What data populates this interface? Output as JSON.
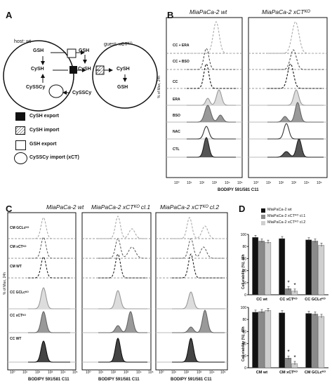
{
  "panels": {
    "A": "A",
    "B": "B",
    "C": "C",
    "D": "D"
  },
  "panelA": {
    "host": "host: wt",
    "guest": "guest: xCTᴷᴼ",
    "gsh_top": "GSH",
    "gsh_export": "GSH",
    "cysh_host": "CySH",
    "cysh_mid": "CySH",
    "cysh_guest": "CySH",
    "gsh_guest": "GSH",
    "cyssc_host": "CySSCy",
    "cyssc_out": "CySSCy",
    "legend": [
      {
        "icon": "black-square",
        "label": "CySH export"
      },
      {
        "icon": "hatched-square",
        "label": "CySH import"
      },
      {
        "icon": "white-square",
        "label": "GSH export"
      },
      {
        "icon": "white-circle",
        "label": "CySSCy import (xCT)"
      }
    ]
  },
  "panelB": {
    "col1": "MiaPaCa-2 wt",
    "col2": "MiaPaCa-2 xCTᴷᴼ",
    "ylabel": "% of Max, 24h",
    "xlabel": "BODIPY 591/581 C11",
    "rows": [
      "CC + ERA",
      "CC + BSO",
      "CC",
      "ERA",
      "BSO",
      "NAC",
      "CTL"
    ],
    "ticks": [
      "10⁰",
      "10¹",
      "10²",
      "10³",
      "10⁴",
      "10⁵"
    ]
  },
  "panelC": {
    "col1": "MiaPaCa-2 wt",
    "col2": "MiaPaCa-2 xCTᴷᴼ cl.1",
    "col3": "MiaPaCa-2 xCTᴷᴼ cl.2",
    "ylabel": "% of Max, 24h",
    "xlabel": "BODIPY 591/581 C11",
    "rows": [
      "CM GCLcᴷᴼ",
      "CM xCTᴷᴼ",
      "CM WT",
      "CC GCLcᴷᴼ",
      "CC xCTᴷᴼ",
      "CC WT"
    ],
    "ticks": [
      "10⁰",
      "10¹",
      "10²",
      "10³",
      "10⁴",
      "10⁵"
    ]
  },
  "panelD": {
    "legend": [
      "MiaPaCa-2 wt",
      "MiaPaCa-2 xCTᴷᴼ cl.1",
      "MiaPaCa-2 xCTᴷᴼ cl.2"
    ],
    "colors": [
      "#111111",
      "#8a8a8a",
      "#cfcfcf"
    ],
    "ylabel_top": "Cell viability (%), 48h",
    "ylabel_bottom": "Cell viability (%), 48h",
    "yticks": [
      "0",
      "20",
      "40",
      "60",
      "80",
      "100"
    ]
  },
  "chart_data": [
    {
      "type": "bar",
      "ylabel": "Cell viability (%), 48h",
      "ylim": [
        0,
        100
      ],
      "categories": [
        "CC wt",
        "CC xCTᴷᴼ",
        "CC GCLcᴷᴼ"
      ],
      "series": [
        {
          "name": "MiaPaCa-2 wt",
          "values": [
            95,
            93,
            91
          ]
        },
        {
          "name": "MiaPaCa-2 xCTᴷᴼ cl.1",
          "values": [
            89,
            10,
            89
          ]
        },
        {
          "name": "MiaPaCa-2 xCTᴷᴼ cl.2",
          "values": [
            87,
            6,
            82
          ]
        }
      ],
      "annotations": [
        "*",
        "*"
      ]
    },
    {
      "type": "bar",
      "ylabel": "Cell viability (%), 48h",
      "ylim": [
        0,
        100
      ],
      "categories": [
        "CM wt",
        "CM xCTᴷᴼ",
        "CM GCLcᴷᴼ"
      ],
      "series": [
        {
          "name": "MiaPaCa-2 wt",
          "values": [
            92,
            91,
            90
          ]
        },
        {
          "name": "MiaPaCa-2 xCTᴷᴼ cl.1",
          "values": [
            93,
            16,
            89
          ]
        },
        {
          "name": "MiaPaCa-2 xCTᴷᴼ cl.2",
          "values": [
            95,
            7,
            85
          ]
        }
      ],
      "annotations": [
        "*",
        "*"
      ]
    }
  ]
}
